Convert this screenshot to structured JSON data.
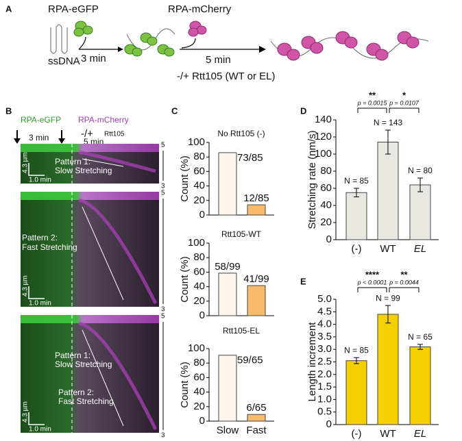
{
  "panel_a": {
    "letter": "A",
    "protein_1": "RPA-eGFP",
    "dna": "ssDNA",
    "step_1": "3 min",
    "protein_2": "RPA-mCherry",
    "step_2": "5 min",
    "condition": "-/+ Rtt105 (WT or EL)"
  },
  "panel_b": {
    "letter": "B",
    "protein_1": "RPA-eGFP",
    "protein_2": "RPA-mCherry",
    "condition": "-/+",
    "condition_name": "Rtt105",
    "time_1": "3 min",
    "time_2": "5 min",
    "kymographs": [
      {
        "labels": [
          "Pattern 1:",
          "Slow Stretching"
        ],
        "scale_y": "4.3 µm",
        "scale_x": "1.0 min",
        "top": "5",
        "bottom": "3"
      },
      {
        "labels": [
          "Pattern 2:",
          "Fast Stretching"
        ],
        "scale_y": "4.3 µm",
        "scale_x": "1.0 min",
        "top": "5",
        "bottom": "3"
      },
      {
        "labels": [
          "Pattern 1:",
          "Slow Stretching",
          "Pattern 2:",
          "Fast Stretching"
        ],
        "scale_y": "4.3 µm",
        "scale_x": "1.0 min",
        "top": "5",
        "bottom": "3"
      }
    ]
  },
  "panel_letters": [
    "C",
    "D",
    "E"
  ],
  "chart_data": [
    {
      "type": "bar",
      "title": "No Rtt105 (-)",
      "y_label": "Count (%)",
      "categories": [
        null,
        null
      ],
      "values": [
        85.9,
        14.1
      ],
      "value_labels": [
        "73/85",
        "12/85"
      ],
      "colors": [
        "#fdf5ea",
        "#f8ba6c"
      ],
      "ylim": [
        0,
        100
      ],
      "yticks": [
        0,
        20,
        40,
        60,
        80,
        100
      ]
    },
    {
      "type": "bar",
      "title": "Rtt105-WT",
      "y_label": "Count (%)",
      "categories": [
        null,
        null
      ],
      "values": [
        58.6,
        41.4
      ],
      "value_labels": [
        "58/99",
        "41/99"
      ],
      "colors": [
        "#fdf5ea",
        "#f8ba6c"
      ],
      "ylim": [
        0,
        100
      ],
      "yticks": [
        0,
        20,
        40,
        60,
        80,
        100
      ]
    },
    {
      "type": "bar",
      "title": "Rtt105-EL",
      "y_label": "Count (%)",
      "categories": [
        "Slow",
        "Fast"
      ],
      "values": [
        90.8,
        9.2
      ],
      "value_labels": [
        "59/65",
        "6/65"
      ],
      "colors": [
        "#fdf5ea",
        "#f8ba6c"
      ],
      "ylim": [
        0,
        100
      ],
      "yticks": [
        0,
        20,
        40,
        60,
        80,
        100
      ]
    },
    {
      "type": "bar",
      "y_label": "Stretching rate (nm/s)",
      "categories": [
        "(-)",
        "WT",
        "EL"
      ],
      "values": [
        55,
        114,
        64
      ],
      "errors": [
        5,
        14,
        8
      ],
      "annotations": [
        "N = 85",
        "N = 143",
        "N = 80"
      ],
      "colors": [
        "#e9e7e1",
        "#e9e7e1",
        "#e9e7e1"
      ],
      "ylim": [
        0,
        140
      ],
      "yticks": [
        0,
        20,
        40,
        60,
        80,
        100,
        120,
        140
      ],
      "significance": [
        {
          "stars": "**",
          "p": "p = 0.0015"
        },
        {
          "stars": "*",
          "p": "p = 0.0107"
        }
      ]
    },
    {
      "type": "bar",
      "y_label": "Length increment",
      "categories": [
        "(-)",
        "WT",
        "EL"
      ],
      "values": [
        2.55,
        4.4,
        3.1
      ],
      "errors": [
        0.12,
        0.35,
        0.1
      ],
      "annotations": [
        "N = 85",
        "N = 99",
        "N = 65"
      ],
      "colors": [
        "#f5d000",
        "#f5d000",
        "#f5d000"
      ],
      "ylim": [
        0,
        5
      ],
      "yticks": [
        0,
        0.5,
        {
          "value": 1,
          "label": "1.0"
        },
        1.5,
        {
          "value": 2,
          "label": "2.0"
        },
        2.5,
        {
          "value": 3,
          "label": "3.0"
        },
        3.5,
        {
          "value": 4,
          "label": "4.0"
        },
        4.5,
        {
          "value": 5,
          "label": "5.0"
        }
      ],
      "significance": [
        {
          "stars": "****",
          "p": "p < 0.0001"
        },
        {
          "stars": "**",
          "p": "p = 0.0044"
        }
      ]
    }
  ]
}
